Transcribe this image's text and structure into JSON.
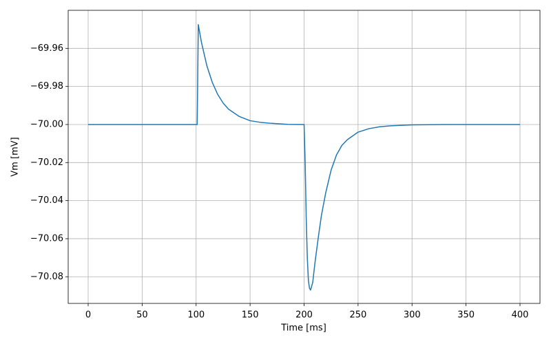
{
  "chart_data": {
    "type": "line",
    "x_label": "Time [ms]",
    "y_label": "Vm [mV]",
    "x": [
      0,
      100,
      101,
      102,
      105,
      110,
      115,
      120,
      125,
      130,
      140,
      150,
      160,
      170,
      185,
      200,
      201,
      202,
      203,
      204,
      205,
      206,
      208,
      210,
      213,
      216,
      220,
      225,
      230,
      235,
      240,
      250,
      260,
      270,
      280,
      300,
      330,
      400
    ],
    "series": [
      {
        "color": "#1f77b4",
        "values": [
          -70.0,
          -70.0,
          -70.0,
          -69.9475,
          -69.957,
          -69.9692,
          -69.9779,
          -69.9842,
          -69.9887,
          -69.9919,
          -69.9958,
          -69.998,
          -69.9989,
          -69.9994,
          -69.9999,
          -70.0,
          -70.02,
          -70.05,
          -70.07,
          -70.082,
          -70.086,
          -70.087,
          -70.083,
          -70.073,
          -70.06,
          -70.048,
          -70.036,
          -70.024,
          -70.016,
          -70.011,
          -70.008,
          -70.004,
          -70.0022,
          -70.0012,
          -70.0007,
          -70.0002,
          -70.0,
          -70.0
        ]
      }
    ],
    "xlim": [
      -18.5,
      418.5
    ],
    "ylim": [
      -70.094,
      -69.94
    ],
    "xticks": [
      0,
      50,
      100,
      150,
      200,
      250,
      300,
      350,
      400
    ],
    "yticks": [
      {
        "value": -70.08,
        "label": "−70.08"
      },
      {
        "value": -70.06,
        "label": "−70.06"
      },
      {
        "value": -70.04,
        "label": "−70.04"
      },
      {
        "value": -70.02,
        "label": "−70.02"
      },
      {
        "value": -70.0,
        "label": "−70.00"
      },
      {
        "value": -69.98,
        "label": "−69.98"
      },
      {
        "value": -69.96,
        "label": "−69.96"
      }
    ],
    "grid": true
  }
}
